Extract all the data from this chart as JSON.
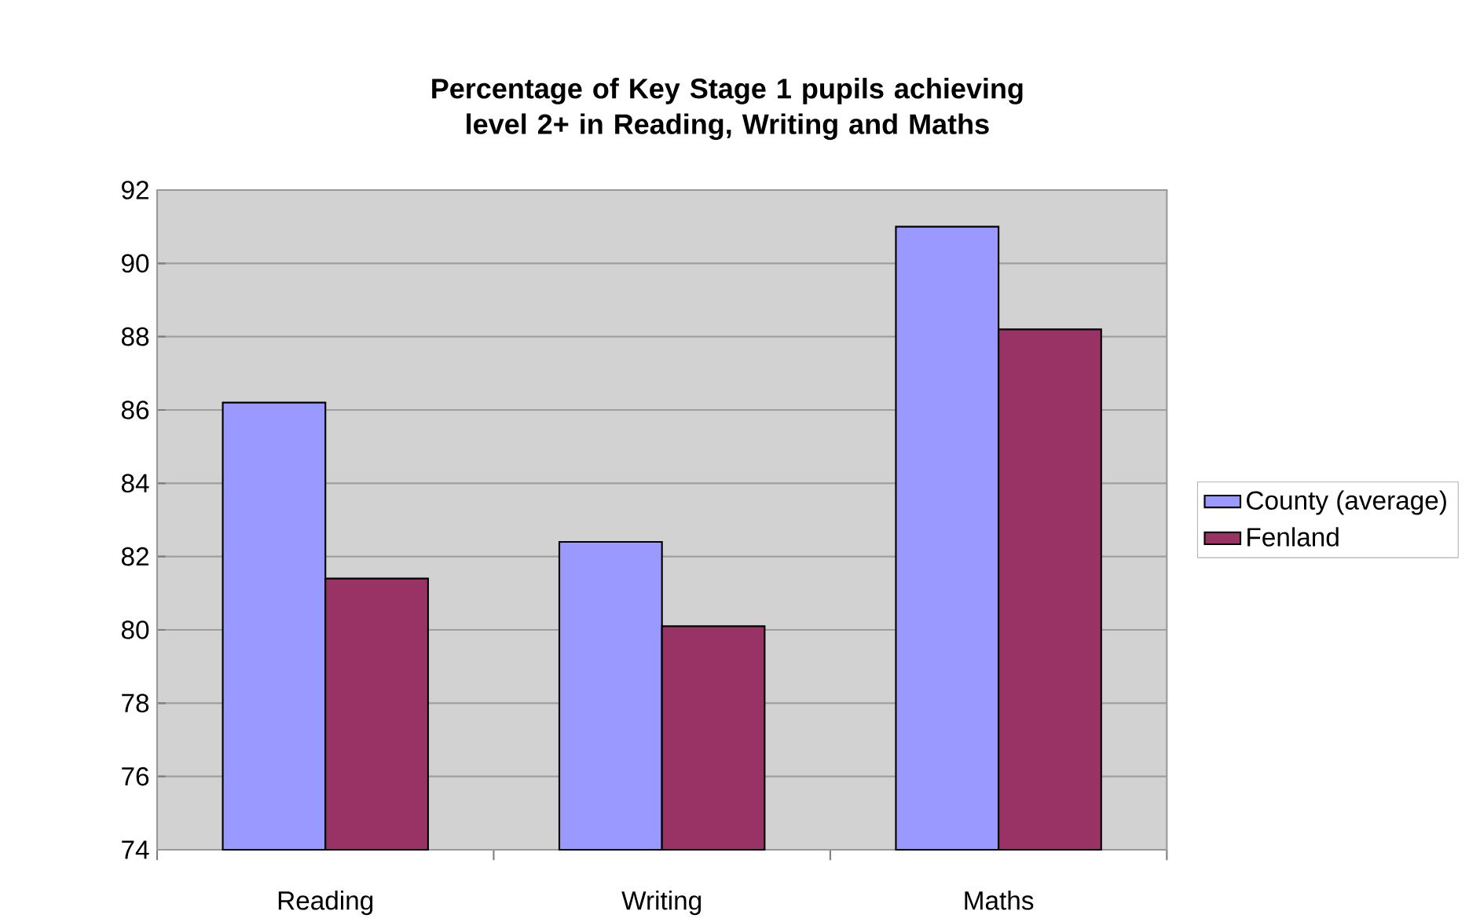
{
  "chart_data": {
    "type": "bar",
    "title": "Percentage of Key Stage 1 pupils achieving level 2+ in Reading, Writing and Maths",
    "categories": [
      "Reading",
      "Writing",
      "Maths"
    ],
    "series": [
      {
        "name": "County (average)",
        "color": "#9999ff",
        "values": [
          86.2,
          82.4,
          91.0
        ]
      },
      {
        "name": "Fenland",
        "color": "#993366",
        "values": [
          81.4,
          80.1,
          88.2
        ]
      }
    ],
    "ylim": [
      74,
      92
    ],
    "yticks": [
      74,
      76,
      78,
      80,
      82,
      84,
      86,
      88,
      90,
      92
    ],
    "grid": "y",
    "legend": "right"
  }
}
